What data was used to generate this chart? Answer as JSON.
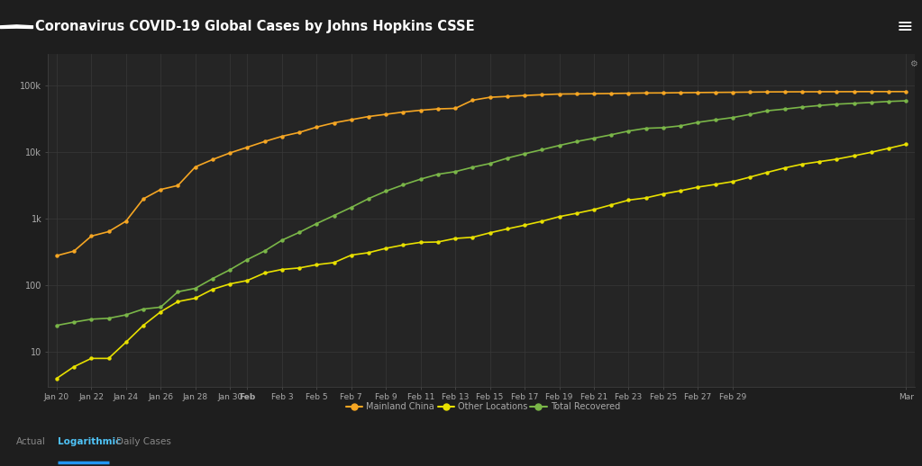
{
  "title": "Coronavirus COVID-19 Global Cases by Johns Hopkins CSSE",
  "fig_bg": "#1e1e1e",
  "header_bg": "#111111",
  "plot_bg": "#252525",
  "grid_color": "#383838",
  "text_color": "#aaaaaa",
  "mainland_china": [
    278,
    326,
    547,
    639,
    916,
    1979,
    2737,
    3149,
    5974,
    7711,
    9692,
    11791,
    14380,
    17205,
    19693,
    23680,
    27409,
    30587,
    34110,
    36814,
    39829,
    42354,
    44386,
    45171,
    59895,
    66292,
    68333,
    70548,
    72436,
    74185,
    74576,
    75077,
    75522,
    76288,
    76936,
    77150,
    77658,
    78064,
    78497,
    78824,
    79251,
    79824,
    80026,
    80151,
    80270,
    80409,
    80552,
    80651,
    80695,
    80735
  ],
  "other_locations": [
    4,
    6,
    8,
    8,
    14,
    25,
    40,
    57,
    64,
    87,
    105,
    118,
    153,
    173,
    182,
    204,
    219,
    284,
    309,
    359,
    403,
    441,
    447,
    505,
    526,
    614,
    703,
    798,
    914,
    1073,
    1205,
    1369,
    1613,
    1899,
    2050,
    2353,
    2626,
    2977,
    3265,
    3598,
    4204,
    4953,
    5765,
    6566,
    7169,
    7818,
    8774,
    9927,
    11374,
    13077
  ],
  "total_recovered": [
    25,
    28,
    31,
    32,
    36,
    44,
    47,
    80,
    90,
    126,
    171,
    243,
    328,
    475,
    623,
    843,
    1115,
    1477,
    1999,
    2591,
    3219,
    3918,
    4636,
    5082,
    5911,
    6728,
    8101,
    9419,
    10844,
    12552,
    14376,
    16121,
    18177,
    20659,
    22699,
    23187,
    24734,
    27905,
    30384,
    32898,
    36711,
    41625,
    44132,
    47204,
    49856,
    52292,
    53776,
    55539,
    57388,
    58735
  ],
  "date_labels": [
    "Jan 20",
    "Jan 22",
    "Jan 24",
    "Jan 26",
    "Jan 28",
    "Jan 30",
    "Feb",
    "Feb 3",
    "Feb 5",
    "Feb 7",
    "Feb 9",
    "Feb 11",
    "Feb 13",
    "Feb 15",
    "Feb 17",
    "Feb 19",
    "Feb 21",
    "Feb 23",
    "Feb 25",
    "Feb 27",
    "Feb 29",
    "Mar"
  ],
  "date_x_pos": [
    0,
    2,
    4,
    6,
    8,
    10,
    11,
    13,
    15,
    17,
    19,
    21,
    23,
    25,
    27,
    29,
    31,
    33,
    35,
    37,
    39,
    49
  ],
  "line_colors": {
    "mainland_china": "#f5a623",
    "other_locations": "#e8e000",
    "total_recovered": "#7ab648"
  },
  "legend_labels": [
    "Mainland China",
    "Other Locations",
    "Total Recovered"
  ],
  "ylim": [
    3,
    300000
  ],
  "yticks": [
    10,
    100,
    1000,
    10000,
    100000
  ],
  "ytick_labels": [
    "10",
    "100",
    "1k",
    "10k",
    "100k"
  ]
}
